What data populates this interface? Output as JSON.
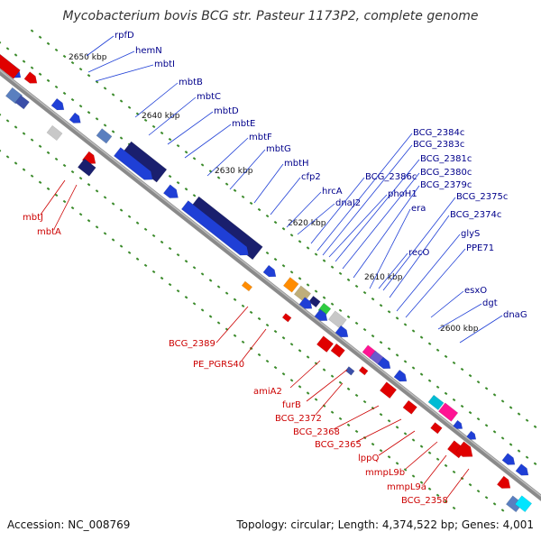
{
  "title": "Mycobacterium bovis BCG str. Pasteur 1173P2, complete genome",
  "footer": {
    "accession": "Accession: NC_008769",
    "summary": "Topology: circular; Length: 4,374,522 bp; Genes: 4,001"
  },
  "colors": {
    "backbone": "#777777",
    "upper_gene_label": "#00008b",
    "lower_gene_label": "#cc0000",
    "tick": "#3a8a2a"
  },
  "kbp_labels": [
    "2650 kbp",
    "2640 kbp",
    "2630 kbp",
    "2620 kbp",
    "2610 kbp",
    "2600 kbp"
  ],
  "upper_labels": [
    "rpfD",
    "hemN",
    "mbtI",
    "mbtB",
    "mbtC",
    "mbtD",
    "mbtE",
    "mbtF",
    "mbtG",
    "mbtH",
    "cfp2",
    "hrcA",
    "dnaJ2",
    "BCG_2386c",
    "phoH1",
    "BCG_2384c",
    "BCG_2383c",
    "BCG_2381c",
    "BCG_2380c",
    "BCG_2379c",
    "era",
    "BCG_2375c",
    "BCG_2374c",
    "glyS",
    "recO",
    "PPE71",
    "esxO",
    "dgt",
    "dnaG"
  ],
  "lower_labels": [
    "mbtJ",
    "mbtA",
    "BCG_2389",
    "PE_PGRS40",
    "amiA2",
    "furB",
    "BCG_2372",
    "BCG_2368",
    "BCG_2365",
    "lppQ",
    "mmpL9b",
    "mmpL9a",
    "BCG_2358"
  ]
}
